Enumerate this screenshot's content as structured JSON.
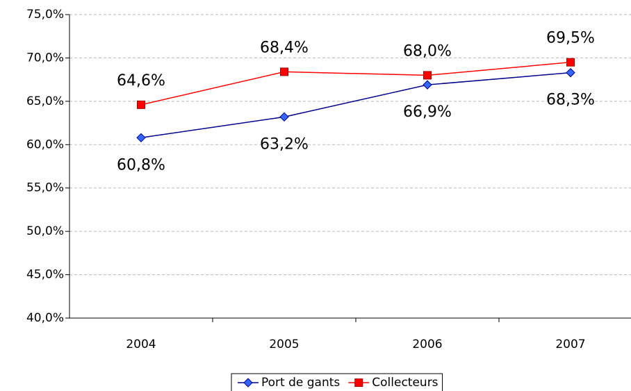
{
  "chart_data": {
    "type": "line",
    "categories": [
      "2004",
      "2005",
      "2006",
      "2007"
    ],
    "series": [
      {
        "name": "Port de gants",
        "color": "#00008b",
        "marker_color": "#3366ff",
        "marker": "diamond",
        "values": [
          60.8,
          63.2,
          66.9,
          68.3
        ],
        "value_labels": [
          "60,8%",
          "63,2%",
          "66,9%",
          "68,3%"
        ]
      },
      {
        "name": "Collecteurs",
        "color": "#ff0000",
        "marker_color": "#ff0000",
        "marker": "square",
        "values": [
          64.6,
          68.4,
          68.0,
          69.5
        ],
        "value_labels": [
          "64,6%",
          "68,4%",
          "68,0%",
          "69,5%"
        ]
      }
    ],
    "ylim": [
      40,
      75
    ],
    "yticks": [
      {
        "value": 40,
        "label": "40,0%"
      },
      {
        "value": 45,
        "label": "45,0%"
      },
      {
        "value": 50,
        "label": "50,0%"
      },
      {
        "value": 55,
        "label": "55,0%"
      },
      {
        "value": 60,
        "label": "60,0%"
      },
      {
        "value": 65,
        "label": "65,0%"
      },
      {
        "value": 70,
        "label": "70,0%"
      },
      {
        "value": 75,
        "label": "75,0%"
      }
    ],
    "grid": true,
    "legend": "bottom"
  }
}
